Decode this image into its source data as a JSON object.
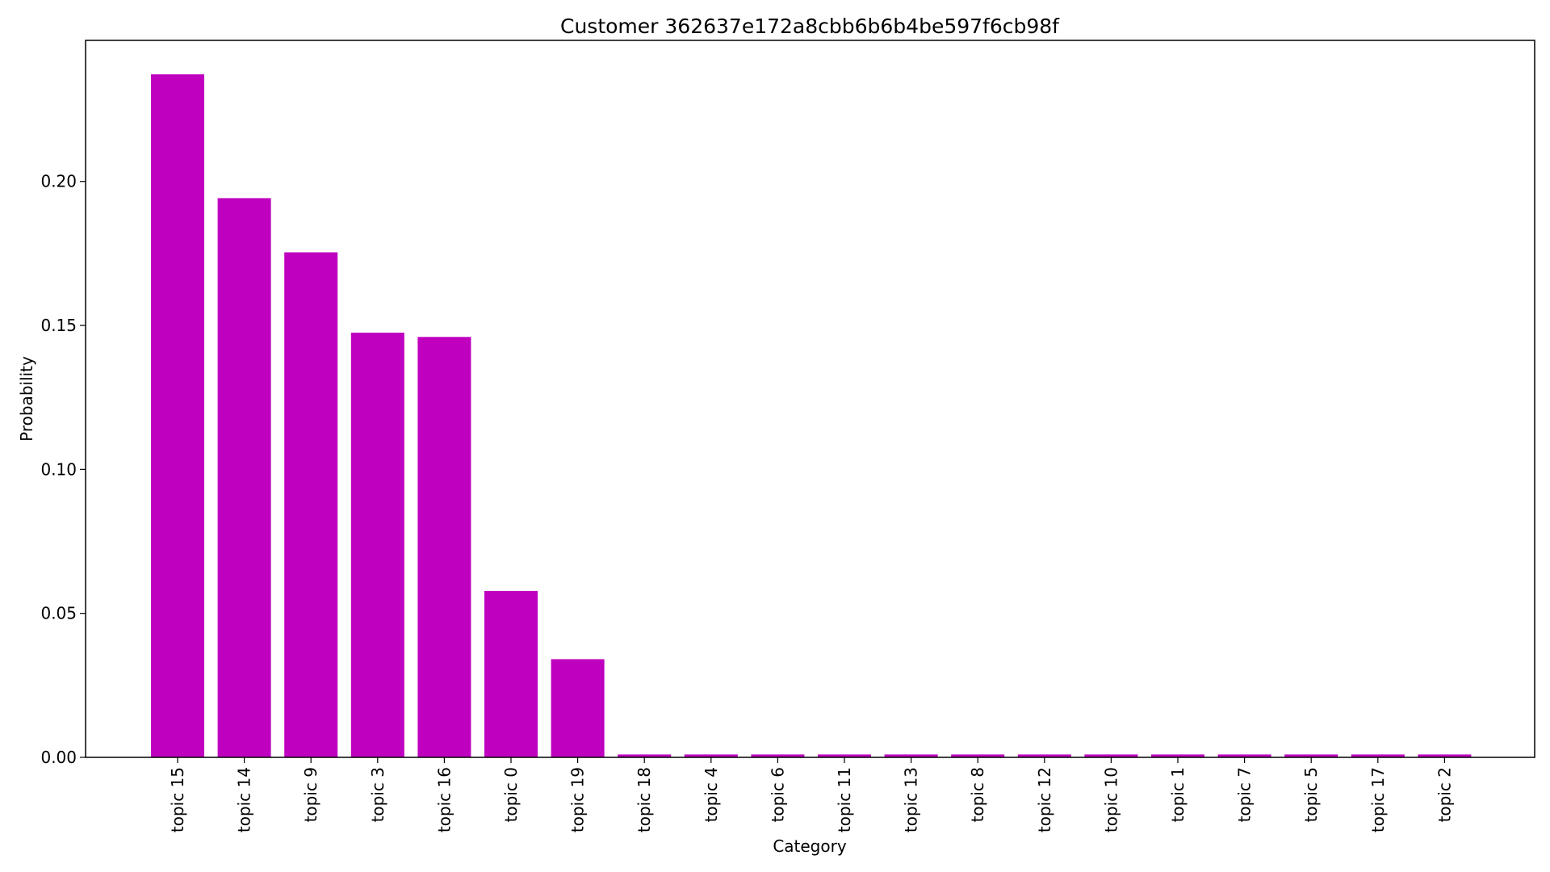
{
  "chart_data": {
    "type": "bar",
    "title": "Customer 362637e172a8cbb6b6b4be597f6cb98f",
    "xlabel": "Category",
    "ylabel": "Probability",
    "categories": [
      "topic 15",
      "topic 14",
      "topic 9",
      "topic 3",
      "topic 16",
      "topic 0",
      "topic 19",
      "topic 18",
      "topic 4",
      "topic 6",
      "topic 11",
      "topic 13",
      "topic 8",
      "topic 12",
      "topic 10",
      "topic 1",
      "topic 7",
      "topic 5",
      "topic 17",
      "topic 2"
    ],
    "values": [
      0.2372,
      0.1942,
      0.1754,
      0.1475,
      0.146,
      0.0578,
      0.0341,
      0.001,
      0.001,
      0.001,
      0.001,
      0.001,
      0.001,
      0.001,
      0.001,
      0.001,
      0.001,
      0.001,
      0.001,
      0.001
    ],
    "ylim": [
      0,
      0.249
    ],
    "yticks": [
      "0.00",
      "0.05",
      "0.10",
      "0.15",
      "0.20"
    ],
    "ytick_values": [
      0,
      0.05,
      0.1,
      0.15,
      0.2
    ],
    "grid": false,
    "legend": "none",
    "colors": {
      "bar": "#bf00bf",
      "axis": "#000000"
    }
  }
}
